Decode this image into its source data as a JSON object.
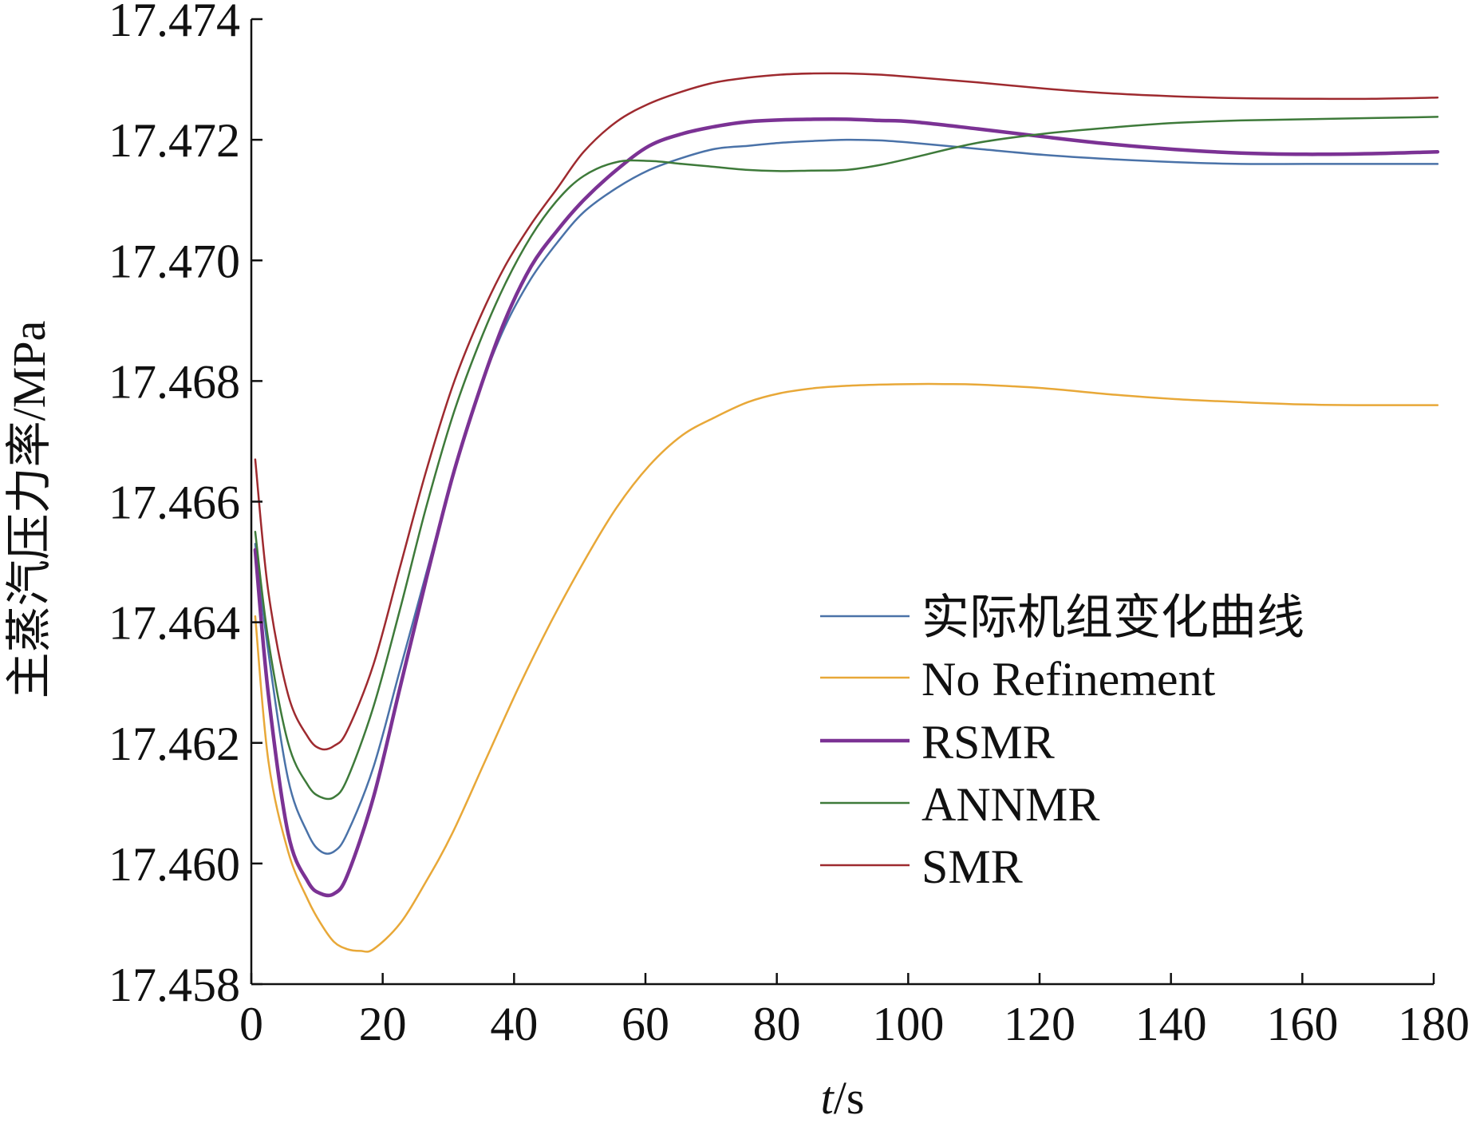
{
  "chart_data": {
    "type": "line",
    "xlabel": "t/s",
    "ylabel": "主蒸汽压力率/MPa",
    "xlim": [
      0,
      180
    ],
    "ylim": [
      17.458,
      17.474
    ],
    "xticks": [
      "0",
      "20",
      "40",
      "60",
      "80",
      "100",
      "120",
      "140",
      "160",
      "180"
    ],
    "yticks": [
      "17.458",
      "17.460",
      "17.462",
      "17.464",
      "17.466",
      "17.468",
      "17.470",
      "17.472",
      "17.474"
    ],
    "legend_position": "right",
    "series": [
      {
        "name": "实际机组变化曲线",
        "color": "#4a72a8",
        "x": [
          0,
          2,
          5,
          8,
          10,
          12,
          14,
          18,
          22,
          26,
          30,
          34,
          38,
          42,
          46,
          50,
          55,
          60,
          65,
          70,
          75,
          80,
          85,
          90,
          95,
          100,
          110,
          120,
          130,
          140,
          150,
          160,
          170,
          180
        ],
        "y": [
          17.4653,
          17.4635,
          17.4614,
          17.4605,
          17.4602,
          17.4602,
          17.4605,
          17.4616,
          17.4632,
          17.4648,
          17.4664,
          17.4678,
          17.4689,
          17.4697,
          17.4703,
          17.4708,
          17.4712,
          17.4715,
          17.4717,
          17.47185,
          17.4719,
          17.47195,
          17.47198,
          17.472,
          17.47199,
          17.47195,
          17.47185,
          17.47175,
          17.47168,
          17.47163,
          17.4716,
          17.4716,
          17.4716,
          17.4716
        ]
      },
      {
        "name": "No Refinement",
        "color": "#e8a838",
        "x": [
          0,
          2,
          5,
          8,
          10,
          12,
          14,
          16,
          18,
          22,
          26,
          30,
          35,
          40,
          45,
          50,
          55,
          60,
          65,
          70,
          75,
          80,
          85,
          90,
          95,
          100,
          105,
          110,
          120,
          130,
          140,
          150,
          160,
          170,
          180
        ],
        "y": [
          17.4641,
          17.4617,
          17.4602,
          17.4594,
          17.459,
          17.4587,
          17.45858,
          17.45855,
          17.45858,
          17.459,
          17.4597,
          17.4605,
          17.4617,
          17.4629,
          17.464,
          17.465,
          17.4659,
          17.4666,
          17.4671,
          17.4674,
          17.46765,
          17.4678,
          17.46788,
          17.46792,
          17.46794,
          17.46795,
          17.46795,
          17.46794,
          17.46788,
          17.46778,
          17.4677,
          17.46765,
          17.46761,
          17.4676,
          17.4676
        ]
      },
      {
        "name": "RSMR",
        "color": "#7b3294",
        "x": [
          0,
          2,
          5,
          8,
          10,
          12,
          14,
          18,
          22,
          26,
          30,
          34,
          38,
          42,
          46,
          50,
          55,
          60,
          65,
          70,
          75,
          80,
          85,
          90,
          95,
          100,
          110,
          120,
          130,
          140,
          150,
          160,
          170,
          180
        ],
        "y": [
          17.4652,
          17.4628,
          17.4605,
          17.4597,
          17.4595,
          17.4595,
          17.4598,
          17.4611,
          17.4629,
          17.4647,
          17.4664,
          17.4678,
          17.469,
          17.4699,
          17.4705,
          17.471,
          17.4715,
          17.4719,
          17.4721,
          17.47222,
          17.4723,
          17.47233,
          17.47234,
          17.47234,
          17.47232,
          17.4723,
          17.47218,
          17.47205,
          17.47193,
          17.47184,
          17.47178,
          17.47176,
          17.47177,
          17.4718
        ]
      },
      {
        "name": "ANNMR",
        "color": "#3e7a3a",
        "x": [
          0,
          2,
          5,
          8,
          10,
          12,
          14,
          18,
          22,
          26,
          30,
          34,
          38,
          42,
          46,
          50,
          55,
          60,
          65,
          70,
          75,
          80,
          85,
          90,
          95,
          100,
          110,
          120,
          130,
          140,
          150,
          160,
          170,
          180
        ],
        "y": [
          17.4655,
          17.4637,
          17.462,
          17.4613,
          17.4611,
          17.4611,
          17.4614,
          17.4626,
          17.4642,
          17.4659,
          17.4674,
          17.4686,
          17.4696,
          17.4704,
          17.471,
          17.4714,
          17.47163,
          17.47165,
          17.4716,
          17.47155,
          17.4715,
          17.47148,
          17.47149,
          17.4715,
          17.47158,
          17.4717,
          17.47195,
          17.4721,
          17.4722,
          17.47228,
          17.47232,
          17.47234,
          17.47236,
          17.47238
        ]
      },
      {
        "name": "SMR",
        "color": "#9e2a2f",
        "x": [
          0,
          2,
          5,
          8,
          10,
          12,
          14,
          18,
          22,
          26,
          30,
          34,
          38,
          42,
          46,
          50,
          55,
          60,
          65,
          70,
          75,
          80,
          85,
          90,
          95,
          100,
          110,
          120,
          130,
          140,
          150,
          160,
          170,
          180
        ],
        "y": [
          17.4667,
          17.4645,
          17.4628,
          17.4621,
          17.4619,
          17.46195,
          17.4622,
          17.4633,
          17.4649,
          17.4665,
          17.4679,
          17.469,
          17.4699,
          17.4706,
          17.4712,
          17.4718,
          17.4723,
          17.4726,
          17.4728,
          17.47295,
          17.47303,
          17.47308,
          17.4731,
          17.4731,
          17.47308,
          17.47304,
          17.47295,
          17.47285,
          17.47277,
          17.47272,
          17.47269,
          17.47268,
          17.47268,
          17.4727
        ]
      }
    ]
  }
}
